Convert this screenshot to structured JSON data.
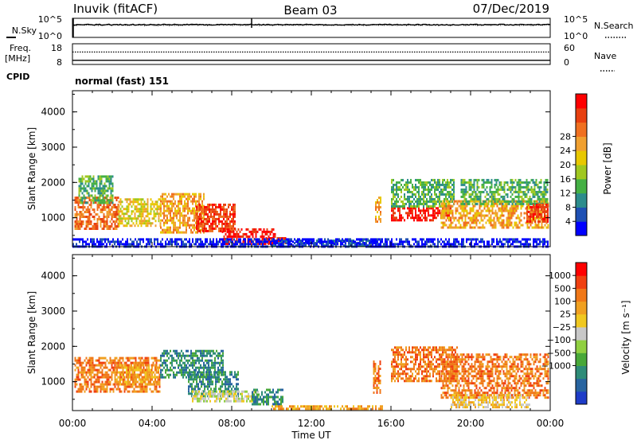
{
  "header": {
    "station": "Inuvik (fitACF)",
    "beam": "Beam 03",
    "date": "07/Dec/2019"
  },
  "status_panels": {
    "noise": {
      "left_label": "N.Sky",
      "right_label": "N.Search",
      "left_ticks": [
        "10^5",
        "10^0"
      ],
      "right_ticks": [
        "10^5",
        "10^0"
      ]
    },
    "freq": {
      "left_label_1": "Freq.",
      "left_label_2": "[MHz]",
      "right_label": "Nave",
      "left_ticks": [
        "18",
        "8"
      ],
      "right_ticks": [
        "60",
        "0"
      ]
    },
    "cpid": {
      "label": "CPID",
      "value": "normal (fast) 151"
    }
  },
  "chart_data": [
    {
      "type": "heatmap",
      "panel": "power",
      "ylabel": "Slant Range [km]",
      "xlabel": "Time UT",
      "y_ticks": [
        1000,
        2000,
        3000,
        4000
      ],
      "ylim": [
        180,
        4600
      ],
      "x_ticks": [
        "00:00",
        "04:00",
        "08:00",
        "12:00",
        "16:00",
        "20:00",
        "00:00"
      ],
      "xlim_hours": [
        0,
        24
      ],
      "colorbar": {
        "label": "Power [dB]",
        "ticks": [
          "4",
          "8",
          "12",
          "16",
          "20",
          "24",
          "28"
        ],
        "colors": [
          "#0000ff",
          "#1e50b4",
          "#2c8c8c",
          "#44b044",
          "#a0c820",
          "#e8c800",
          "#f0a030",
          "#f07020",
          "#e84010",
          "#ff0000"
        ]
      },
      "echo_regions": [
        {
          "t0": 0.1,
          "t1": 2.3,
          "r0": 700,
          "r1": 1600,
          "level": 7
        },
        {
          "t0": 0.3,
          "t1": 2.0,
          "r0": 1400,
          "r1": 2200,
          "level": 3
        },
        {
          "t0": 2.3,
          "t1": 4.4,
          "r0": 800,
          "r1": 1550,
          "level": 5
        },
        {
          "t0": 4.4,
          "t1": 6.6,
          "r0": 600,
          "r1": 1700,
          "level": 6
        },
        {
          "t0": 6.2,
          "t1": 8.2,
          "r0": 600,
          "r1": 1400,
          "level": 8
        },
        {
          "t0": 7.5,
          "t1": 10.2,
          "r0": 250,
          "r1": 700,
          "level": 9
        },
        {
          "t0": 9.7,
          "t1": 10.7,
          "r0": 250,
          "r1": 450,
          "level": 9
        },
        {
          "t0": 10.0,
          "t1": 15.5,
          "r0": 200,
          "r1": 380,
          "level": 1
        },
        {
          "t0": 15.2,
          "t1": 15.5,
          "r0": 900,
          "r1": 1600,
          "level": 6
        },
        {
          "t0": 16.0,
          "t1": 19.0,
          "r0": 950,
          "r1": 1300,
          "level": 9
        },
        {
          "t0": 16.0,
          "t1": 19.2,
          "r0": 1300,
          "r1": 2100,
          "level": 3
        },
        {
          "t0": 18.5,
          "t1": 23.9,
          "r0": 700,
          "r1": 1500,
          "level": 6
        },
        {
          "t0": 19.5,
          "t1": 23.9,
          "r0": 1400,
          "r1": 2100,
          "level": 3
        },
        {
          "t0": 22.8,
          "t1": 23.9,
          "r0": 900,
          "r1": 1400,
          "level": 8
        },
        {
          "t0": 0.0,
          "t1": 23.9,
          "r0": 200,
          "r1": 420,
          "level": 0
        }
      ]
    },
    {
      "type": "heatmap",
      "panel": "velocity",
      "ylabel": "Slant Range [km]",
      "xlabel": "Time UT",
      "y_ticks": [
        1000,
        2000,
        3000,
        4000
      ],
      "ylim": [
        180,
        4600
      ],
      "x_ticks": [
        "00:00",
        "04:00",
        "08:00",
        "12:00",
        "16:00",
        "20:00",
        "00:00"
      ],
      "xlim_hours": [
        0,
        24
      ],
      "colorbar": {
        "label": "Velocity [m s⁻¹]",
        "ticks": [
          "1000",
          "500",
          "100",
          "25",
          "−25",
          "−100",
          "−500",
          "−1000"
        ],
        "colors": [
          "#1e3cc8",
          "#2864a0",
          "#2e8c78",
          "#48a838",
          "#90d040",
          "#c8c8c8",
          "#f0c820",
          "#f0a020",
          "#f07818",
          "#f04010",
          "#ff0000"
        ]
      },
      "echo_regions": [
        {
          "t0": 0.1,
          "t1": 4.4,
          "r0": 700,
          "r1": 1700,
          "level": 8
        },
        {
          "t0": 2.2,
          "t1": 4.3,
          "r0": 900,
          "r1": 1500,
          "level": 7
        },
        {
          "t0": 4.4,
          "t1": 7.6,
          "r0": 1100,
          "r1": 1900,
          "level": 2
        },
        {
          "t0": 5.8,
          "t1": 8.3,
          "r0": 600,
          "r1": 1300,
          "level": 2
        },
        {
          "t0": 6.0,
          "t1": 9.3,
          "r0": 420,
          "r1": 750,
          "level": 5
        },
        {
          "t0": 9.0,
          "t1": 10.6,
          "r0": 330,
          "r1": 800,
          "level": 2
        },
        {
          "t0": 10.0,
          "t1": 15.6,
          "r0": 200,
          "r1": 330,
          "level": 7
        },
        {
          "t0": 15.1,
          "t1": 15.5,
          "r0": 700,
          "r1": 1600,
          "level": 8
        },
        {
          "t0": 16.0,
          "t1": 19.3,
          "r0": 1000,
          "r1": 2000,
          "level": 8
        },
        {
          "t0": 18.5,
          "t1": 23.9,
          "r0": 550,
          "r1": 1800,
          "level": 8
        },
        {
          "t0": 19.0,
          "t1": 23.0,
          "r0": 300,
          "r1": 650,
          "level": 6
        }
      ]
    }
  ],
  "noise_trace": {
    "sky_level": 0.25,
    "search_level": 0.22,
    "spike_hour": 9.0
  },
  "freq_trace": {
    "freq_level": 0.2,
    "nave_level": 0.6
  }
}
